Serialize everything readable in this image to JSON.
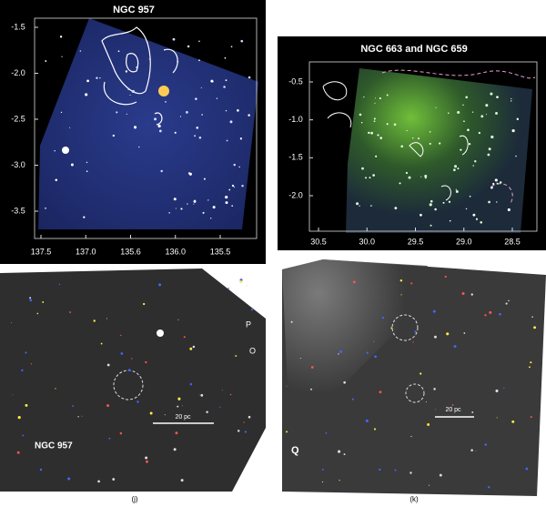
{
  "panels": [
    {
      "title": "NGC 957",
      "yticks": [
        "-1.5",
        "-2.0",
        "-2.5",
        "-3.0",
        "-3.5"
      ],
      "xticks": [
        "137.5",
        "137.0",
        "135.6",
        "136.0",
        "135.5"
      ]
    },
    {
      "title": "NGC 663 and NGC 659",
      "yticks": [
        "-0.5",
        "-1.0",
        "-1.5",
        "-2.0"
      ],
      "xticks": [
        "30.5",
        "30.0",
        "29.5",
        "29.0",
        "28.5"
      ]
    },
    {
      "labels": [
        "P",
        "O",
        "NGC 957"
      ],
      "scale_bar": "20 pc",
      "caption": "(j)"
    },
    {
      "labels": [
        "Q"
      ],
      "scale_bar": "20 pc",
      "caption": "(k)"
    }
  ]
}
